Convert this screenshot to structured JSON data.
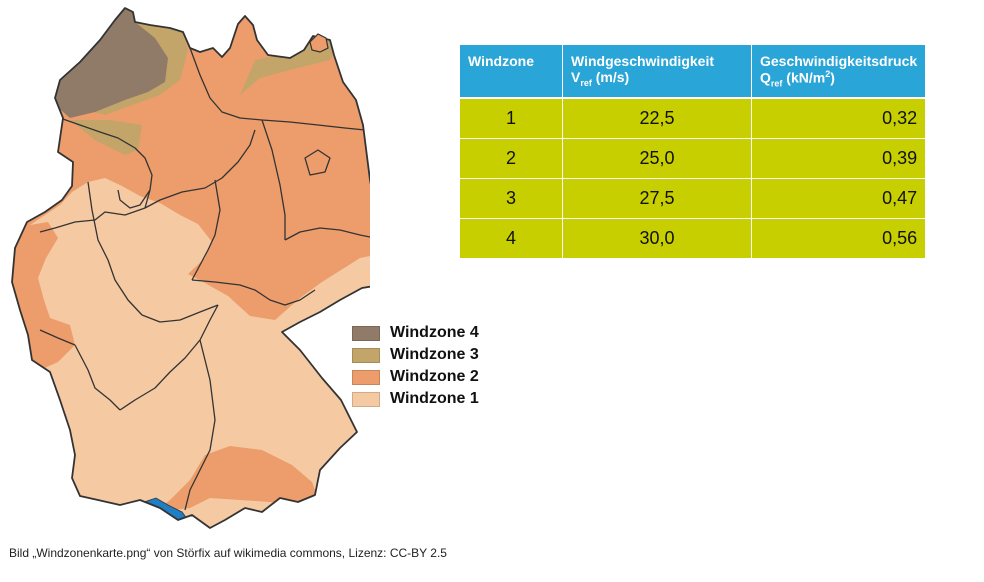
{
  "colors": {
    "zone4": "#8f7b68",
    "zone3": "#c3a56a",
    "zone2": "#ec9d6b",
    "zone1": "#f5c9a2",
    "lake": "#1e7fc4",
    "border": "#333333",
    "table_header": "#2aa5d8",
    "table_body": "#c8cf00"
  },
  "legend": [
    {
      "label": "Windzone 4",
      "color_key": "zone4"
    },
    {
      "label": "Windzone 3",
      "color_key": "zone3"
    },
    {
      "label": "Windzone 2",
      "color_key": "zone2"
    },
    {
      "label": "Windzone 1",
      "color_key": "zone1"
    }
  ],
  "table": {
    "headers": {
      "zone": "Windzone",
      "speed_line1": "Windgeschwindigkeit",
      "speed_sym": "V",
      "speed_sub": "ref",
      "speed_unit": "(m/s)",
      "press_line1": "Geschwindigkeitsdruck",
      "press_sym": "Q",
      "press_sub": "ref",
      "press_unit_a": "(kN/m",
      "press_unit_sup": "2",
      "press_unit_b": ")"
    },
    "rows": [
      {
        "zone": "1",
        "speed": "22,5",
        "pressure": "0,32"
      },
      {
        "zone": "2",
        "speed": "25,0",
        "pressure": "0,39"
      },
      {
        "zone": "3",
        "speed": "27,5",
        "pressure": "0,47"
      },
      {
        "zone": "4",
        "speed": "30,0",
        "pressure": "0,56"
      }
    ]
  },
  "caption": "Bild „Windzonenkarte.png“ von Störfix auf wikimedia commons,  Lizenz: CC-BY 2.5"
}
